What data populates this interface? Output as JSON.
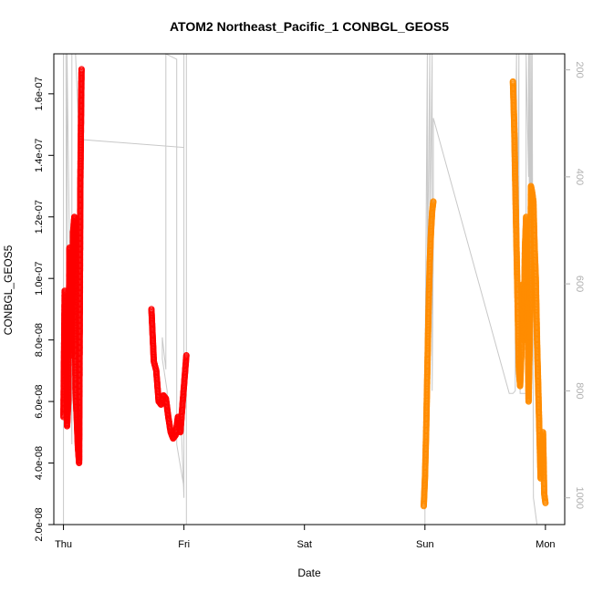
{
  "chart_data": {
    "type": "scatter",
    "title": "ATOM2 Northeast_Pacific_1 CONBGL_GEOS5",
    "xlabel": "Date",
    "ylabel": "CONBGL_GEOS5",
    "x_ticks": [
      "Thu",
      "Fri",
      "Sat",
      "Sun",
      "Mon"
    ],
    "xlim": [
      -0.08,
      4.16
    ],
    "ylim": [
      2e-08,
      1.73e-07
    ],
    "y_ticks": [
      "2.0e-08",
      "4.0e-08",
      "6.0e-08",
      "8.0e-08",
      "1.0e-07",
      "1.2e-07",
      "1.4e-07",
      "1.6e-07"
    ],
    "y_tick_values": [
      2e-08,
      4e-08,
      6e-08,
      8e-08,
      1e-07,
      1.2e-07,
      1.4e-07,
      1.6e-07
    ],
    "y2_ticks": [
      "200",
      "400",
      "600",
      "800",
      "1000"
    ],
    "y2_tick_values": [
      200,
      400,
      600,
      800,
      1000
    ],
    "y2lim": [
      1050,
      170
    ],
    "series_colors": [
      "#ff0000",
      "#ff8c00",
      "#c8c8c8"
    ],
    "series": [
      {
        "color": "#ff0000",
        "x": [
          0.0,
          0.01,
          0.02,
          0.03,
          0.04,
          0.05,
          0.06,
          0.07,
          0.08,
          0.09,
          0.1,
          0.11,
          0.12,
          0.13,
          0.14,
          0.15
        ],
        "y": [
          5.5e-08,
          9.6e-08,
          8e-08,
          5.2e-08,
          6e-08,
          1.1e-07,
          9e-08,
          7.5e-08,
          1.15e-07,
          1.2e-07,
          6.3e-08,
          5.5e-08,
          4.5e-08,
          4e-08,
          1.3e-07,
          1.68e-07
        ]
      },
      {
        "color": "#ff0000",
        "x": [
          0.73,
          0.75,
          0.77,
          0.79,
          0.81,
          0.83,
          0.85,
          0.87,
          0.89,
          0.91,
          0.93,
          0.95,
          0.97,
          0.99,
          1.01,
          1.02
        ],
        "y": [
          9e-08,
          7.3e-08,
          7e-08,
          6e-08,
          5.9e-08,
          6.2e-08,
          6.1e-08,
          5.5e-08,
          5e-08,
          4.8e-08,
          4.9e-08,
          5.5e-08,
          5e-08,
          6e-08,
          7e-08,
          7.5e-08
        ]
      },
      {
        "color": "#ff8c00",
        "x": [
          2.99,
          3.0,
          3.01,
          3.02,
          3.03,
          3.04,
          3.05,
          3.06,
          3.07
        ],
        "y": [
          2.6e-08,
          3.5e-08,
          5e-08,
          7e-08,
          9e-08,
          1.05e-07,
          1.15e-07,
          1.22e-07,
          1.25e-07
        ]
      },
      {
        "color": "#ff8c00",
        "x": [
          3.73,
          3.74,
          3.75,
          3.76,
          3.77,
          3.78,
          3.79,
          3.8,
          3.81,
          3.82,
          3.83,
          3.84,
          3.85,
          3.86,
          3.87,
          3.88,
          3.89,
          3.9,
          3.91,
          3.92,
          3.93,
          3.94,
          3.95,
          3.96,
          3.97,
          3.98,
          3.99,
          4.0
        ],
        "y": [
          1.64e-07,
          1.51e-07,
          1.3e-07,
          1.1e-07,
          9e-08,
          7e-08,
          6.5e-08,
          7.5e-08,
          9.8e-08,
          8e-08,
          1.1e-07,
          1.2e-07,
          9.5e-08,
          6e-08,
          8e-08,
          1.3e-07,
          1.28e-07,
          1.25e-07,
          1.1e-07,
          1e-07,
          8e-08,
          6.5e-08,
          5e-08,
          3.5e-08,
          4.5e-08,
          5e-08,
          3e-08,
          2.7e-08
        ]
      }
    ],
    "pressure_line": {
      "color": "#c8c8c8",
      "x": [
        0.0,
        0.0,
        0.02,
        0.03,
        0.03,
        0.07,
        0.07,
        0.1,
        0.13,
        1.0,
        1.0,
        1.0,
        0.98,
        0.86,
        0.86,
        0.82,
        0.82,
        0.85,
        0.85,
        0.94,
        0.94,
        1.0,
        1.0,
        1.02,
        1.02,
        3.0,
        3.0,
        3.02,
        3.02,
        3.04,
        3.04,
        3.06,
        3.06,
        3.07,
        3.07,
        3.7,
        3.73,
        3.75,
        3.75,
        3.76,
        3.76,
        3.78,
        3.78,
        3.79,
        3.84,
        3.84,
        3.86,
        3.86,
        3.87,
        3.87,
        3.88,
        3.88,
        3.89,
        3.89,
        3.9,
        3.93
      ],
      "y": [
        1050,
        170,
        170,
        800,
        170,
        900,
        170,
        170,
        330,
        345,
        170,
        1000,
        880,
        870,
        800,
        740,
        700,
        760,
        170,
        180,
        900,
        980,
        170,
        170,
        1050,
        1050,
        800,
        170,
        600,
        170,
        520,
        170,
        800,
        530,
        290,
        805,
        805,
        800,
        350,
        170,
        700,
        170,
        500,
        805,
        805,
        170,
        400,
        170,
        600,
        170,
        800,
        170,
        600,
        170,
        1000,
        1050
      ]
    }
  }
}
